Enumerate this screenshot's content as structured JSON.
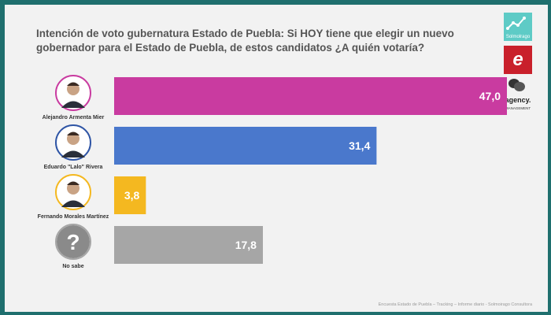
{
  "title": "Intención de voto gubernatura Estado de Puebla: Si HOY tiene que elegir un nuevo gobernador para el Estado de Puebla, de estos candidatos ¿A quién votaría?",
  "logos": {
    "logo1_text": "Solmolrago",
    "logo2_icon": "brand-e-icon",
    "logo3_text": "agency.",
    "logo3_sub": "MANAGEMENT"
  },
  "footer": "Encuesta Estado de Puebla – Tracking – Informe diario - Solmoirago Consultora",
  "chart_data": {
    "type": "bar",
    "orientation": "horizontal",
    "categories": [
      "Alejandro Armenta Mier",
      "Eduardo \"Lalo\" Rivera",
      "Fernando Morales Martínez",
      "No sabe"
    ],
    "values": [
      47.0,
      31.4,
      3.8,
      17.8
    ],
    "value_labels": [
      "47,0",
      "31,4",
      "3,8",
      "17,8"
    ],
    "colors": [
      "#c93ba0",
      "#4a78cc",
      "#f4b820",
      "#a6a6a6"
    ],
    "avatar_ring_colors": [
      "#c93ba0",
      "#2f55a5",
      "#f4b820",
      "#a6a6a6"
    ],
    "xlim": [
      0,
      50
    ],
    "grid": false,
    "legend": false
  }
}
